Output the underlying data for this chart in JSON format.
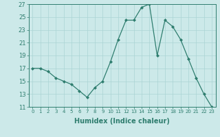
{
  "x": [
    0,
    1,
    2,
    3,
    4,
    5,
    6,
    7,
    8,
    9,
    10,
    11,
    12,
    13,
    14,
    15,
    16,
    17,
    18,
    19,
    20,
    21,
    22,
    23
  ],
  "y": [
    17,
    17,
    16.5,
    15.5,
    15,
    14.5,
    13.5,
    12.5,
    14,
    15,
    18,
    21.5,
    24.5,
    24.5,
    26.5,
    27,
    19,
    24.5,
    23.5,
    21.5,
    18.5,
    15.5,
    13,
    11
  ],
  "xlabel": "Humidex (Indice chaleur)",
  "ylim": [
    11,
    27
  ],
  "xlim": [
    -0.5,
    23.5
  ],
  "yticks": [
    11,
    13,
    15,
    17,
    19,
    21,
    23,
    25,
    27
  ],
  "xticks": [
    0,
    1,
    2,
    3,
    4,
    5,
    6,
    7,
    8,
    9,
    10,
    11,
    12,
    13,
    14,
    15,
    16,
    17,
    18,
    19,
    20,
    21,
    22,
    23
  ],
  "xtick_labels": [
    "0",
    "1",
    "2",
    "3",
    "4",
    "5",
    "6",
    "7",
    "8",
    "9",
    "10",
    "11",
    "12",
    "13",
    "14",
    "15",
    "16",
    "17",
    "18",
    "19",
    "20",
    "21",
    "22",
    "23"
  ],
  "line_color": "#2e7d6e",
  "marker_color": "#2e7d6e",
  "bg_color": "#cce9e9",
  "grid_color": "#aad4d4",
  "xlabel_fontsize": 7,
  "ytick_fontsize": 6,
  "xtick_fontsize": 5
}
